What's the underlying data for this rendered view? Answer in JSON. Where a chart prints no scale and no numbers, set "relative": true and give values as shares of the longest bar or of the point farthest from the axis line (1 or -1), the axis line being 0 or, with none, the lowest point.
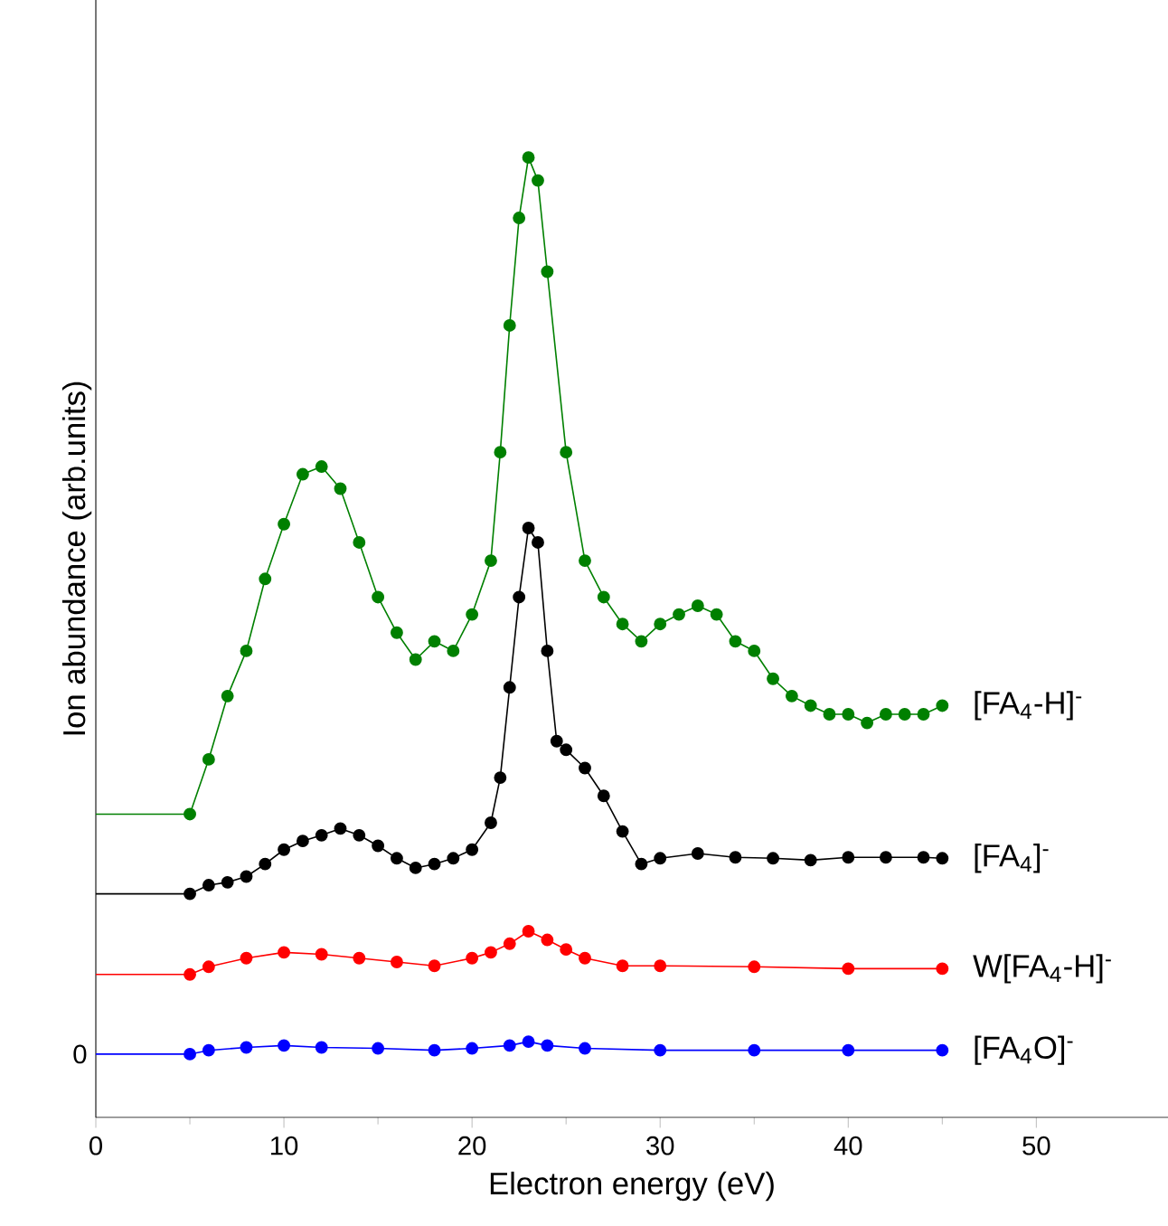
{
  "chart_data": {
    "type": "line",
    "relative": true,
    "xlabel": "Electron energy (eV)",
    "ylabel": "Ion abundance (arb.units)",
    "xlim": [
      0,
      57
    ],
    "xticks": [
      0,
      10,
      20,
      30,
      40,
      50
    ],
    "marker": "circle",
    "annotations": [
      "0"
    ],
    "series": [
      {
        "name": "[FA$_{4}$-H]$^{-}$",
        "color": "#008000",
        "x": [
          0,
          5,
          6,
          7,
          8,
          9,
          10,
          11,
          12,
          13,
          14,
          15,
          16,
          17,
          18,
          19,
          20,
          21,
          21.5,
          22,
          22.5,
          23,
          23.5,
          24,
          25,
          26,
          27,
          28,
          29,
          30,
          31,
          32,
          33,
          34,
          35,
          36,
          37,
          38,
          39,
          40,
          41,
          42,
          43,
          44,
          45
        ],
        "values": [
          0.316,
          0.316,
          0.373,
          0.439,
          0.486,
          0.561,
          0.618,
          0.67,
          0.678,
          0.655,
          0.599,
          0.542,
          0.505,
          0.477,
          0.496,
          0.486,
          0.524,
          0.58,
          0.693,
          0.825,
          0.937,
          1.0,
          0.976,
          0.881,
          0.693,
          0.58,
          0.542,
          0.514,
          0.496,
          0.514,
          0.524,
          0.533,
          0.524,
          0.496,
          0.486,
          0.457,
          0.439,
          0.429,
          0.42,
          0.42,
          0.411,
          0.42,
          0.42,
          0.42,
          0.429
        ]
      },
      {
        "name": "[FA$_{4}$]$^{-}$",
        "color": "#000000",
        "x": [
          0,
          5,
          6,
          7,
          8,
          9,
          10,
          11,
          12,
          13,
          14,
          15,
          16,
          17,
          18,
          19,
          20,
          21,
          21.5,
          22,
          22.5,
          23,
          23.5,
          24,
          24.5,
          25,
          26,
          27,
          28,
          29,
          30,
          32,
          34,
          36,
          38,
          40,
          42,
          44,
          45
        ],
        "values": [
          0.233,
          0.233,
          0.242,
          0.245,
          0.251,
          0.264,
          0.279,
          0.288,
          0.294,
          0.301,
          0.294,
          0.283,
          0.27,
          0.26,
          0.264,
          0.27,
          0.279,
          0.307,
          0.354,
          0.448,
          0.542,
          0.614,
          0.599,
          0.486,
          0.392,
          0.383,
          0.364,
          0.335,
          0.298,
          0.264,
          0.27,
          0.275,
          0.271,
          0.27,
          0.268,
          0.271,
          0.271,
          0.271,
          0.27
        ]
      },
      {
        "name": "W[FA$_{4}$-H]$^{-}$",
        "color": "#ff0000",
        "x": [
          0,
          5,
          6,
          8,
          10,
          12,
          14,
          16,
          18,
          20,
          21,
          22,
          23,
          24,
          25,
          26,
          28,
          30,
          35,
          40,
          45
        ],
        "values": [
          0.149,
          0.149,
          0.157,
          0.166,
          0.172,
          0.17,
          0.166,
          0.162,
          0.158,
          0.166,
          0.172,
          0.181,
          0.194,
          0.185,
          0.175,
          0.166,
          0.158,
          0.158,
          0.157,
          0.155,
          0.155
        ]
      },
      {
        "name": "[FA$_{4}$O]$^{-}$",
        "color": "#0000ff",
        "x": [
          0,
          5,
          6,
          8,
          10,
          12,
          15,
          18,
          20,
          22,
          23,
          24,
          26,
          30,
          35,
          40,
          45
        ],
        "values": [
          0.066,
          0.066,
          0.07,
          0.073,
          0.075,
          0.073,
          0.072,
          0.07,
          0.072,
          0.075,
          0.079,
          0.075,
          0.072,
          0.07,
          0.07,
          0.07,
          0.07
        ]
      }
    ]
  }
}
